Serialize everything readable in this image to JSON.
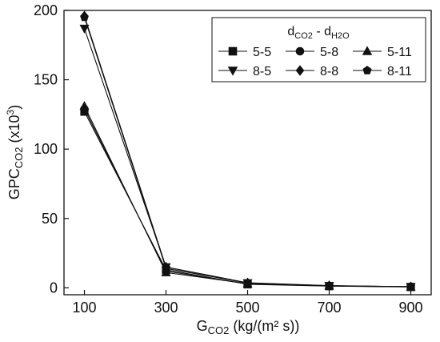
{
  "chart_data": {
    "type": "line",
    "x": [
      100,
      300,
      500,
      700,
      900
    ],
    "xticks": [
      100,
      300,
      500,
      700,
      900
    ],
    "yticks": [
      0,
      50,
      100,
      150,
      200
    ],
    "xlim": [
      50,
      950
    ],
    "ylim": [
      -5,
      200
    ],
    "xlabel": {
      "main": "G",
      "sub": "CO2",
      "rest": " (kg/(m² s))"
    },
    "ylabel": {
      "main": "GPC",
      "sub": "CO2",
      "mid": " (x10",
      "sup": "3",
      "end": ")"
    },
    "grid": false,
    "legend": {
      "title": {
        "d1": "d",
        "s1": "CO2",
        "mid": " - d",
        "s2": "H2O"
      },
      "placement": "top-right",
      "columns": 3
    },
    "series": [
      {
        "name": "5-5",
        "marker": "square",
        "values": [
          127,
          13,
          2.5,
          1.2,
          0.6
        ]
      },
      {
        "name": "5-8",
        "marker": "circle",
        "values": [
          129,
          12,
          2.8,
          1.3,
          0.7
        ]
      },
      {
        "name": "5-11",
        "marker": "triangle-up",
        "values": [
          131,
          11,
          3.0,
          1.4,
          0.7
        ]
      },
      {
        "name": "8-5",
        "marker": "triangle-down",
        "values": [
          187,
          15,
          3.5,
          1.5,
          0.8
        ]
      },
      {
        "name": "8-8",
        "marker": "diamond",
        "values": [
          196,
          15,
          3.6,
          1.6,
          0.8
        ]
      },
      {
        "name": "8-11",
        "marker": "pentagon",
        "values": [
          195,
          14,
          3.4,
          1.5,
          0.8
        ]
      }
    ],
    "colors": {
      "line": "#111111",
      "marker": "#111111",
      "axis": "#111111"
    }
  }
}
